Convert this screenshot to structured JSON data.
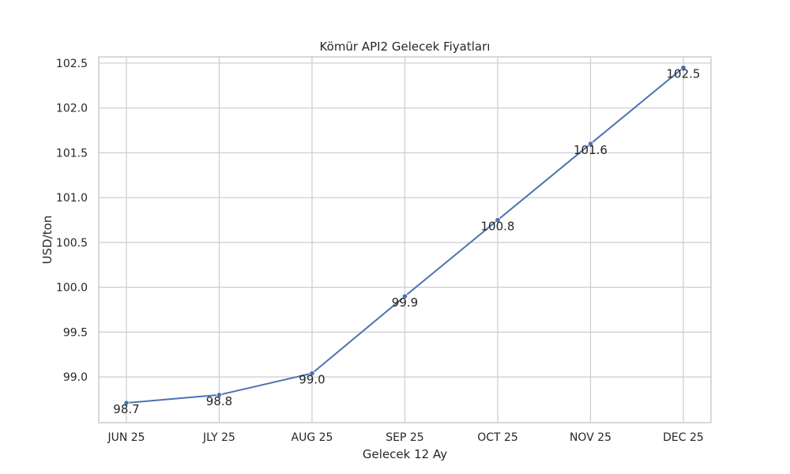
{
  "chart_data": {
    "type": "line",
    "title": "Kömür API2 Gelecek Fiyatları",
    "xlabel": "Gelecek 12 Ay",
    "ylabel": "USD/ton",
    "categories": [
      "JUN 25",
      "JLY 25",
      "AUG 25",
      "SEP 25",
      "OCT 25",
      "NOV 25",
      "DEC 25"
    ],
    "series": [
      {
        "values": [
          98.71,
          98.8,
          99.04,
          99.9,
          100.75,
          101.6,
          102.45
        ]
      }
    ],
    "data_labels": [
      "98.7",
      "98.8",
      "99.0",
      "99.9",
      "100.8",
      "101.6",
      "102.5"
    ],
    "yticks": [
      99.0,
      99.5,
      100.0,
      100.5,
      101.0,
      101.5,
      102.0,
      102.5
    ],
    "ytick_labels": [
      "99.0",
      "99.5",
      "100.0",
      "100.5",
      "101.0",
      "101.5",
      "102.0",
      "102.5"
    ],
    "ylim": [
      98.49,
      102.57
    ],
    "grid": true,
    "line_color": "#4c72b0",
    "grid_color": "#cccccc"
  }
}
